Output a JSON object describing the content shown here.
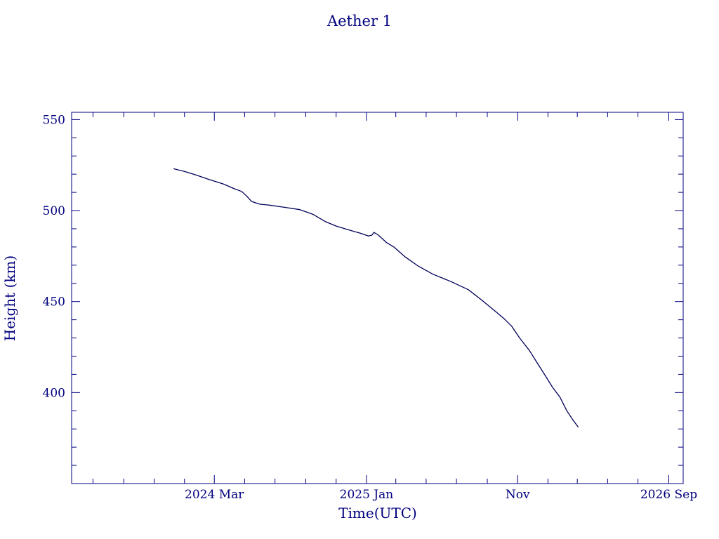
{
  "colors": {
    "ink": "#00007f",
    "line": "#00005a",
    "background": "#ffffff"
  },
  "chart_data": {
    "type": "line",
    "title": "Aether 1",
    "xlabel": "Time(UTC)",
    "ylabel": "Height (km)",
    "xlim": [
      "2023-05-19",
      "2026-09-30"
    ],
    "ylim": [
      350,
      554
    ],
    "x_ticks": [
      {
        "date": "2024-03-01",
        "label": "2024 Mar"
      },
      {
        "date": "2025-01-01",
        "label": "2025 Jan"
      },
      {
        "date": "2025-11-01",
        "label": "Nov"
      },
      {
        "date": "2026-09-01",
        "label": "2026 Sep"
      }
    ],
    "y_ticks": [
      {
        "value": 400,
        "label": "400"
      },
      {
        "value": 450,
        "label": "450"
      },
      {
        "value": 500,
        "label": "500"
      },
      {
        "value": 550,
        "label": "550"
      }
    ],
    "grid": false,
    "series": [
      {
        "x": [
          "2023-12-10",
          "2024-01-01",
          "2024-01-25",
          "2024-02-20",
          "2024-03-20",
          "2024-04-10",
          "2024-04-25",
          "2024-05-05",
          "2024-05-15",
          "2024-06-01",
          "2024-06-20",
          "2024-07-20",
          "2024-08-20",
          "2024-09-15",
          "2024-10-10",
          "2024-11-01",
          "2024-11-25",
          "2024-12-20",
          "2025-01-05",
          "2025-01-12",
          "2025-01-16",
          "2025-01-25",
          "2025-02-10",
          "2025-02-25",
          "2025-03-20",
          "2025-04-15",
          "2025-05-15",
          "2025-06-20",
          "2025-07-25",
          "2025-08-20",
          "2025-09-20",
          "2025-10-05",
          "2025-10-20",
          "2025-11-05",
          "2025-11-25",
          "2025-12-10",
          "2025-12-25",
          "2026-01-10",
          "2026-01-25",
          "2026-02-08",
          "2026-02-20",
          "2026-03-03"
        ],
        "values": [
          523,
          521.5,
          519.5,
          517,
          514.5,
          512,
          510.5,
          508,
          505,
          503.5,
          503,
          501.8,
          500.5,
          498,
          494,
          491.5,
          489.5,
          487.5,
          486,
          486.5,
          488,
          486.5,
          482.5,
          480,
          474.5,
          469.5,
          465,
          461,
          456.5,
          451,
          444,
          440.5,
          436.5,
          430,
          423,
          416.5,
          410,
          403,
          397.5,
          390,
          385,
          381
        ]
      }
    ]
  }
}
